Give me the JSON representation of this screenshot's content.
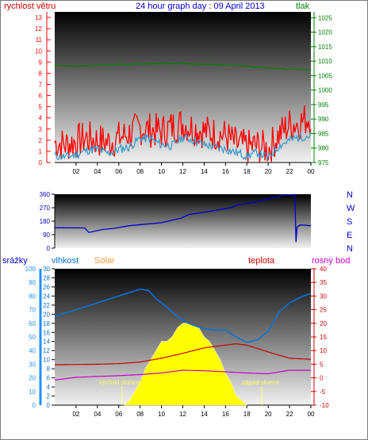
{
  "header": {
    "left_label": "rychlost větru",
    "title": "24 hour graph day : 09 April 2013",
    "right_label": "tlak"
  },
  "colors": {
    "wind": "#ff0000",
    "gust": "#3399cc",
    "pressure": "#008000",
    "direction": "#0000cc",
    "humidity": "#0a72d8",
    "temperature": "#cc0000",
    "dewpoint": "#cc00cc",
    "solar": "#ffff00",
    "rain_axis": "#1e90ff",
    "sunlabel": "#ffff66"
  },
  "chart_data": [
    {
      "type": "line",
      "name": "wind-pressure",
      "x_ticks": [
        "02",
        "04",
        "06",
        "08",
        "10",
        "12",
        "14",
        "16",
        "18",
        "20",
        "22",
        "00"
      ],
      "left_ticks": [
        "0",
        "1",
        "2",
        "3",
        "4",
        "5",
        "6",
        "7",
        "8",
        "9",
        "10",
        "11",
        "12",
        "13"
      ],
      "right_ticks": [
        "975",
        "980",
        "985",
        "990",
        "995",
        "1000",
        "1005",
        "1010",
        "1015",
        "1020",
        "1025"
      ],
      "ylim_left": [
        0,
        13.5
      ],
      "ylim_right": [
        975,
        1027
      ],
      "series": [
        {
          "key": "wind",
          "x": [
            0,
            1,
            2,
            3,
            4,
            5,
            6,
            7,
            8,
            9,
            10,
            11,
            12,
            13,
            14,
            15,
            16,
            17,
            18,
            19,
            20,
            21,
            22,
            23,
            24
          ],
          "y": [
            1.8,
            1.6,
            1.9,
            2.2,
            2.0,
            1.8,
            2.2,
            2.6,
            3.1,
            2.9,
            2.8,
            3.2,
            3.5,
            3.1,
            2.8,
            2.6,
            2.4,
            1.6,
            1.4,
            1.5,
            1.2,
            2.5,
            3.4,
            3.6,
            4.2
          ]
        },
        {
          "key": "gust",
          "x": [
            0,
            1,
            2,
            3,
            4,
            5,
            6,
            7,
            8,
            9,
            10,
            11,
            12,
            13,
            14,
            15,
            16,
            17,
            18,
            19,
            20,
            21,
            22,
            23,
            24
          ],
          "y": [
            0.6,
            0.5,
            0.7,
            1.1,
            1.2,
            0.8,
            1.2,
            1.4,
            2.2,
            2.1,
            1.6,
            1.5,
            2.3,
            2.0,
            1.6,
            1.4,
            1.2,
            0.9,
            0.6,
            0.9,
            0.4,
            1.5,
            2.0,
            2.3,
            2.4
          ]
        },
        {
          "key": "pressure",
          "x": [
            0,
            2,
            4,
            6,
            8,
            10,
            12,
            14,
            16,
            18,
            20,
            22,
            24
          ],
          "y": [
            1008.5,
            1008.2,
            1008.6,
            1008.8,
            1009.0,
            1009.2,
            1009.2,
            1009.0,
            1008.6,
            1008.2,
            1007.6,
            1007.2,
            1007.0
          ]
        }
      ]
    },
    {
      "type": "line",
      "name": "wind-direction",
      "x_ticks": [],
      "left_ticks": [
        "0",
        "90",
        "180",
        "270",
        "360"
      ],
      "right_labels": [
        "N",
        "W",
        "S",
        "E",
        "N"
      ],
      "ylim": [
        0,
        360
      ],
      "series": [
        {
          "key": "direction",
          "x": [
            0,
            2.8,
            3.2,
            4.5,
            5.5,
            7,
            8.5,
            10,
            11.8,
            12.6,
            14.5,
            16.5,
            17.2,
            19,
            20,
            21.5,
            22.5,
            22.6,
            22.7,
            23,
            24
          ],
          "y": [
            136,
            135,
            105,
            125,
            132,
            150,
            160,
            170,
            200,
            225,
            245,
            270,
            290,
            310,
            330,
            355,
            358,
            40,
            140,
            155,
            150
          ]
        }
      ]
    },
    {
      "type": "line",
      "name": "humidity-temperature-solar",
      "x_ticks": [
        "02",
        "04",
        "06",
        "08",
        "10",
        "12",
        "14",
        "16",
        "18",
        "20",
        "22",
        "00"
      ],
      "rain_ticks": [
        "0",
        "10",
        "20",
        "30",
        "40",
        "50",
        "60",
        "70",
        "80",
        "90",
        "100"
      ],
      "humidity_ticks": [
        "0",
        "2",
        "4",
        "6",
        "8",
        "10",
        "12",
        "14",
        "16",
        "18",
        "20",
        "22",
        "24",
        "26",
        "28",
        "30"
      ],
      "temp_ticks": [
        "-10",
        "-5",
        "0",
        "5",
        "10",
        "15",
        "20",
        "25",
        "30",
        "35",
        "40"
      ],
      "labels": {
        "rain": "srážky",
        "humidity": "vlhkost",
        "solar": "Solar",
        "temperature": "teplota",
        "dewpoint": "rosný bod",
        "sunrise": "východ slunce",
        "sunset": "západ slunce"
      },
      "series": [
        {
          "key": "humidity",
          "x": [
            0,
            2,
            4,
            6,
            8,
            8.8,
            9.5,
            10.5,
            11.5,
            12.5,
            13.2,
            14,
            15,
            16,
            17,
            18,
            19,
            20,
            21,
            22,
            23,
            24
          ],
          "y": [
            65,
            70,
            75,
            80,
            85,
            84,
            78,
            72,
            65,
            60,
            58,
            56,
            55,
            55,
            50,
            46,
            48,
            54,
            68,
            75,
            79,
            82
          ]
        },
        {
          "key": "temperature",
          "x": [
            0,
            2,
            4,
            6,
            8,
            10,
            12,
            13,
            14,
            16,
            17,
            18,
            20,
            22,
            24
          ],
          "y": [
            4.8,
            4.9,
            5.0,
            5.2,
            5.8,
            7.2,
            9.0,
            10.0,
            11.0,
            12.0,
            12.5,
            12.0,
            9.5,
            7.2,
            6.8
          ]
        },
        {
          "key": "dewpoint",
          "x": [
            0,
            2,
            4,
            6,
            8,
            10,
            12,
            14,
            16,
            18,
            20,
            22,
            24
          ],
          "y": [
            -0.8,
            0.2,
            0.5,
            0.8,
            1.2,
            1.8,
            2.8,
            2.6,
            2.2,
            1.8,
            1.5,
            2.8,
            2.8
          ]
        },
        {
          "key": "solar",
          "x": [
            6.5,
            7,
            7.5,
            8,
            8.5,
            9,
            9.5,
            10,
            10.5,
            11,
            11.5,
            12,
            12.5,
            13,
            13.5,
            14,
            14.5,
            15,
            15.5,
            16,
            16.5,
            17,
            17.5,
            18
          ],
          "y": [
            0,
            1,
            3,
            5,
            8,
            10,
            12,
            14,
            14,
            15,
            17,
            18,
            18,
            17.5,
            17,
            15,
            14,
            12,
            10,
            7,
            5,
            2,
            1,
            0
          ]
        }
      ]
    }
  ]
}
